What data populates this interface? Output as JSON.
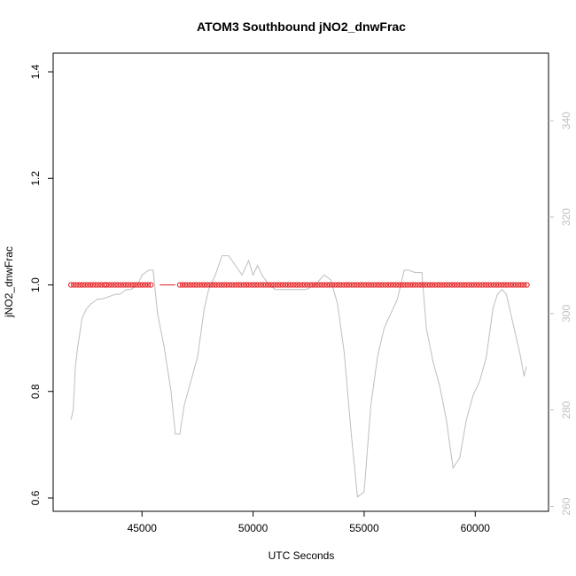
{
  "chart_data": {
    "type": "scatter",
    "title": "ATOM3 Southbound jNO2_dnwFrac",
    "xlabel": "UTC Seconds",
    "ylabel": "jNO2_dnwFrac",
    "xlim": [
      41000,
      63300
    ],
    "ylim": [
      0.575,
      1.435
    ],
    "y2lim": [
      259,
      354
    ],
    "x_ticks": [
      45000,
      50000,
      55000,
      60000
    ],
    "x_tick_labels": [
      "45000",
      "50000",
      "55000",
      "60000"
    ],
    "y_ticks": [
      0.6,
      0.8,
      1.0,
      1.2,
      1.4
    ],
    "y_tick_labels": [
      "0.6",
      "0.8",
      "1.0",
      "1.2",
      "1.4"
    ],
    "y2_ticks": [
      260,
      280,
      300,
      320,
      340
    ],
    "y2_tick_labels": [
      "260",
      "280",
      "300",
      "320",
      "340"
    ],
    "colors": {
      "points": "#e41a1c",
      "secondary_line": "#bebebe",
      "axis": "#000000",
      "right_axis": "#c0c0c0"
    },
    "point_segments": [
      {
        "x_start": 41800,
        "x_end": 43300,
        "step": 125,
        "y": 1.0
      },
      {
        "x_start": 43400,
        "x_end": 45500,
        "step": 125,
        "y": 1.0
      },
      {
        "x_start": 46700,
        "x_end": 62400,
        "step": 125,
        "y": 1.0
      }
    ],
    "gap_line": {
      "x": [
        45800,
        46500
      ],
      "y": [
        1.0,
        1.0
      ]
    },
    "secondary_series": {
      "x": [
        41800,
        41900,
        42000,
        42100,
        42300,
        42500,
        42700,
        43000,
        43200,
        43500,
        43800,
        44000,
        44300,
        44500,
        44800,
        45000,
        45300,
        45500,
        45700,
        46000,
        46300,
        46500,
        46700,
        46900,
        47200,
        47500,
        47800,
        48000,
        48300,
        48600,
        48900,
        49200,
        49500,
        49800,
        50000,
        50200,
        50400,
        50700,
        51000,
        51300,
        51600,
        52000,
        52400,
        52800,
        53200,
        53500,
        53800,
        54100,
        54400,
        54700,
        55000,
        55300,
        55600,
        55900,
        56200,
        56500,
        56800,
        57000,
        57300,
        57600,
        57800,
        58100,
        58400,
        58700,
        59000,
        59300,
        59600,
        59900,
        60200,
        60500,
        60800,
        61000,
        61200,
        61400,
        61700,
        62000,
        62200,
        62300
      ],
      "y": [
        278,
        280,
        289,
        293,
        299,
        301,
        302,
        303,
        303,
        303.5,
        304,
        304,
        305,
        305,
        306,
        308,
        309,
        309,
        300,
        293,
        284,
        275,
        275,
        281,
        286,
        291,
        301,
        305,
        308,
        312,
        312,
        310,
        308,
        311,
        308,
        310,
        308,
        306,
        305,
        305,
        305,
        305,
        305,
        306,
        308,
        307,
        302,
        292,
        276,
        262,
        263,
        281,
        291,
        297,
        300,
        303,
        309,
        309,
        308.5,
        308.5,
        297,
        290,
        285,
        278,
        268,
        270,
        278,
        283,
        286,
        291,
        301,
        304,
        305,
        304,
        298,
        292,
        287,
        289
      ]
    }
  }
}
